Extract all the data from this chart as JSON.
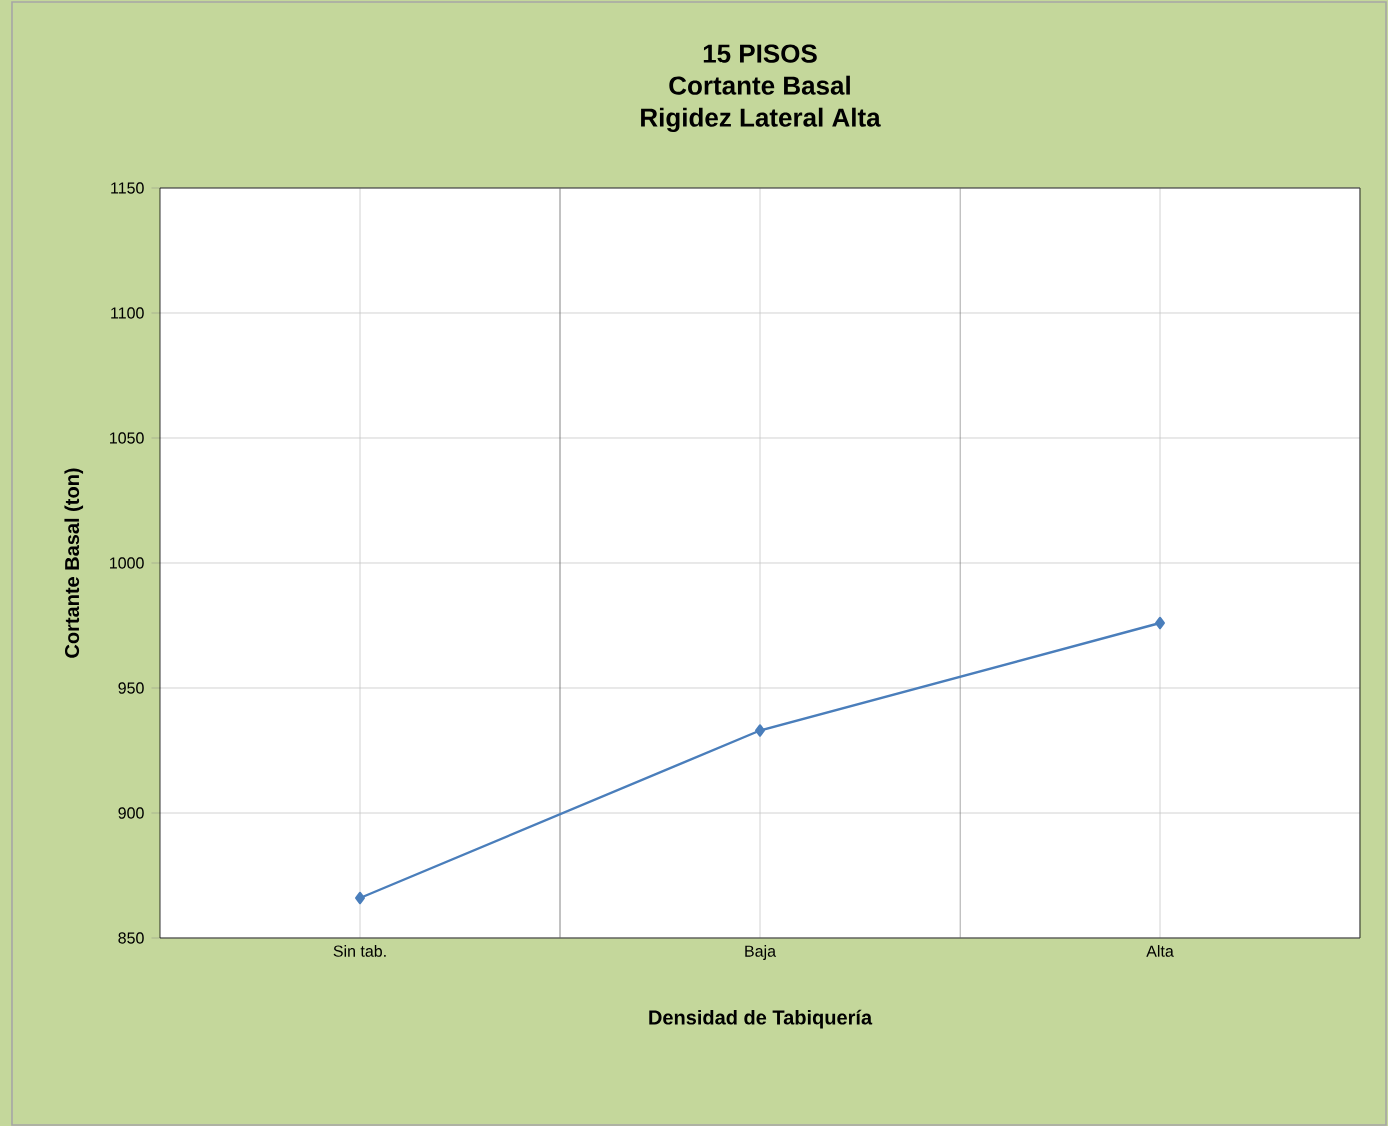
{
  "chart_data": {
    "type": "line",
    "title": "15 PISOS\nCortante Basal\nRigidez Lateral Alta",
    "xlabel": "Densidad de Tabiquería",
    "ylabel": "Cortante Basal  (ton)",
    "categories": [
      "Sin tab.",
      "Baja",
      "Alta"
    ],
    "series": [
      {
        "color": "#4a7ebb",
        "values": [
          866,
          933,
          976
        ]
      }
    ],
    "ylim": [
      850,
      1150
    ],
    "yticks": [
      850,
      900,
      950,
      1000,
      1050,
      1100,
      1150
    ],
    "grid": true,
    "marker": "diamond",
    "line_style": "solid"
  }
}
